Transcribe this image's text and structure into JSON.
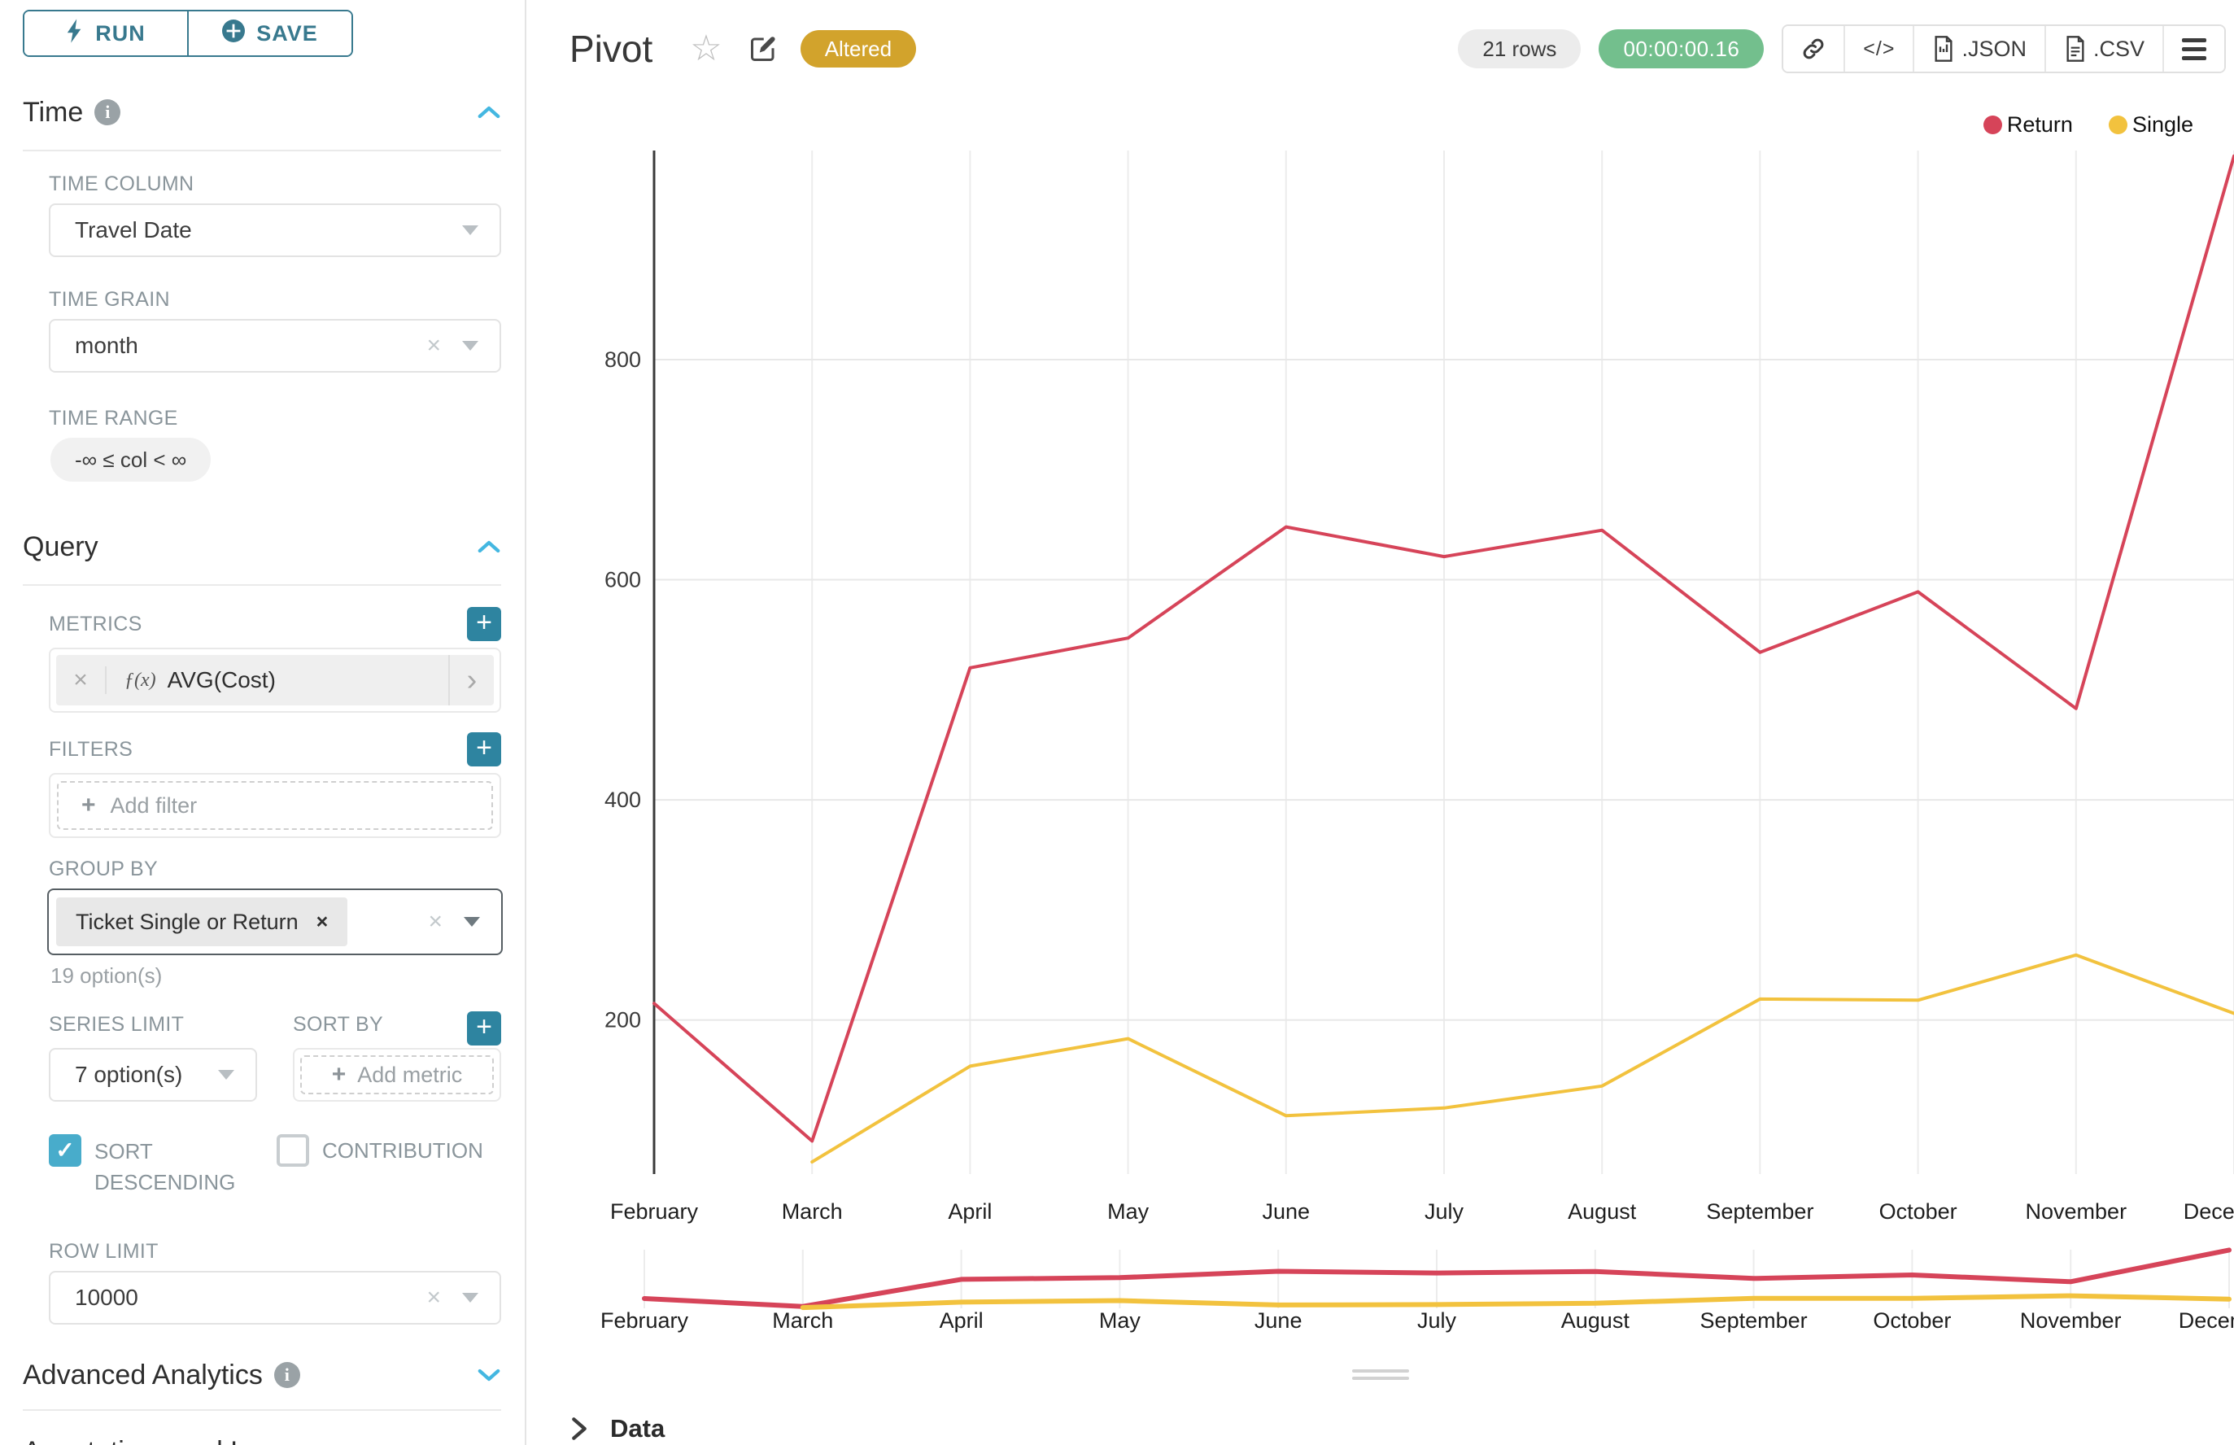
{
  "toolbar": {
    "run": "RUN",
    "save": "SAVE"
  },
  "glyphs": {
    "plus": "+",
    "times": "×",
    "chevron_right": "›",
    "fx": "ƒ(x)",
    "check": "✓",
    "star": "☆",
    "info": "i",
    "code": "</>"
  },
  "panel": {
    "time": {
      "title": "Time",
      "column_label": "TIME COLUMN",
      "column_value": "Travel Date",
      "grain_label": "TIME GRAIN",
      "grain_value": "month",
      "range_label": "TIME RANGE",
      "range_value": "-∞ ≤ col < ∞"
    },
    "query": {
      "title": "Query",
      "metrics_label": "METRICS",
      "metric_value": "AVG(Cost)",
      "filters_label": "FILTERS",
      "add_filter": "Add filter",
      "group_by_label": "GROUP BY",
      "group_by_chip": "Ticket Single or Return",
      "group_by_hint": "19 option(s)",
      "series_limit_label": "SERIES LIMIT",
      "series_limit_value": "7 option(s)",
      "sort_by_label": "SORT BY",
      "add_metric": "Add metric",
      "sort_descending": "SORT DESCENDING",
      "contribution": "CONTRIBUTION",
      "row_limit_label": "ROW LIMIT",
      "row_limit_value": "10000"
    },
    "advanced": {
      "title": "Advanced Analytics"
    },
    "annotations": {
      "title": "Annotations and Layers"
    }
  },
  "header": {
    "title": "Pivot",
    "altered": "Altered",
    "rows": "21 rows",
    "timer": "00:00:00.16",
    "json": ".JSON",
    "csv": ".CSV"
  },
  "footer": {
    "data_title": "Data"
  },
  "chart_data": {
    "type": "line",
    "x": [
      "February",
      "March",
      "April",
      "May",
      "June",
      "July",
      "August",
      "September",
      "October",
      "November",
      "December"
    ],
    "last_label_visible": "Dece",
    "series": [
      {
        "name": "Return",
        "color": "#d64459",
        "values": [
          215,
          90,
          520,
          547,
          648,
          621,
          645,
          534,
          589,
          483,
          985
        ]
      },
      {
        "name": "Single",
        "color": "#f2c23e",
        "values": [
          null,
          71,
          158,
          183,
          113,
          120,
          140,
          219,
          218,
          259,
          206
        ]
      }
    ],
    "yticks": [
      200,
      400,
      600,
      800
    ],
    "ylim": [
      60,
      990
    ],
    "xlabel": "",
    "ylabel": "",
    "grid": true,
    "legend_position": "top-right",
    "has_mini_preview": true
  }
}
